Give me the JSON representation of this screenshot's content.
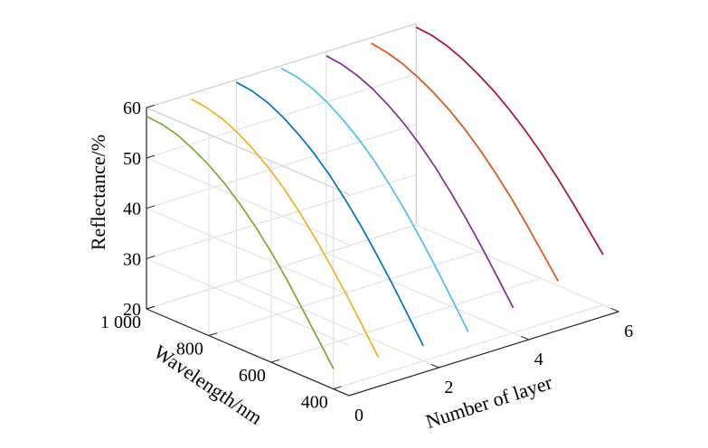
{
  "chart_data": {
    "type": "line",
    "title": "",
    "xlabel": "Number of layer",
    "ylabel": "Wavelength/nm",
    "zlabel": "Reflectance/%",
    "x_ticks": [
      "0",
      "2",
      "4",
      "6"
    ],
    "y_ticks": [
      "400",
      "600",
      "800",
      "1 000"
    ],
    "z_ticks": [
      "20",
      "30",
      "40",
      "50",
      "60"
    ],
    "xlim": [
      0,
      6
    ],
    "ylim": [
      350,
      1000
    ],
    "zlim": [
      20,
      60
    ],
    "grid": true,
    "wavelength_nm": [
      400,
      450,
      500,
      550,
      600,
      650,
      700,
      750,
      800,
      850,
      900,
      950,
      1000
    ],
    "series": [
      {
        "layer": 0,
        "color": "#77ac30",
        "reflectance": [
          24.0,
          28.7,
          33.3,
          37.8,
          41.9,
          45.6,
          48.8,
          51.6,
          53.9,
          55.7,
          57.2,
          58.0,
          58.3
        ]
      },
      {
        "layer": 1,
        "color": "#edb120",
        "reflectance": [
          23.5,
          28.3,
          33.0,
          37.4,
          41.6,
          45.4,
          48.8,
          51.7,
          54.1,
          56.1,
          57.6,
          58.5,
          58.9
        ]
      },
      {
        "layer": 2,
        "color": "#0072bd",
        "reflectance": [
          23.0,
          27.9,
          32.7,
          37.2,
          41.5,
          45.4,
          48.9,
          51.9,
          54.4,
          56.5,
          58.1,
          59.1,
          59.5
        ]
      },
      {
        "layer": 3,
        "color": "#4dbeee",
        "reflectance": [
          23.0,
          27.9,
          32.7,
          37.2,
          41.5,
          45.4,
          48.9,
          51.9,
          54.4,
          56.5,
          58.1,
          59.1,
          59.5
        ]
      },
      {
        "layer": 4,
        "color": "#7e2f8e",
        "reflectance": [
          25.0,
          29.7,
          34.3,
          38.6,
          42.6,
          46.3,
          49.5,
          52.3,
          54.6,
          56.5,
          57.9,
          58.8,
          59.2
        ]
      },
      {
        "layer": 5,
        "color": "#d95319",
        "reflectance": [
          27.5,
          31.8,
          36.0,
          40.0,
          43.6,
          46.9,
          49.8,
          52.3,
          54.4,
          56.1,
          57.5,
          58.4,
          58.9
        ]
      },
      {
        "layer": 6,
        "color": "#a2142f",
        "reflectance": [
          30.0,
          34.0,
          37.9,
          41.6,
          45.0,
          48.1,
          50.8,
          53.2,
          55.2,
          56.9,
          58.2,
          59.0,
          59.3
        ]
      }
    ]
  }
}
